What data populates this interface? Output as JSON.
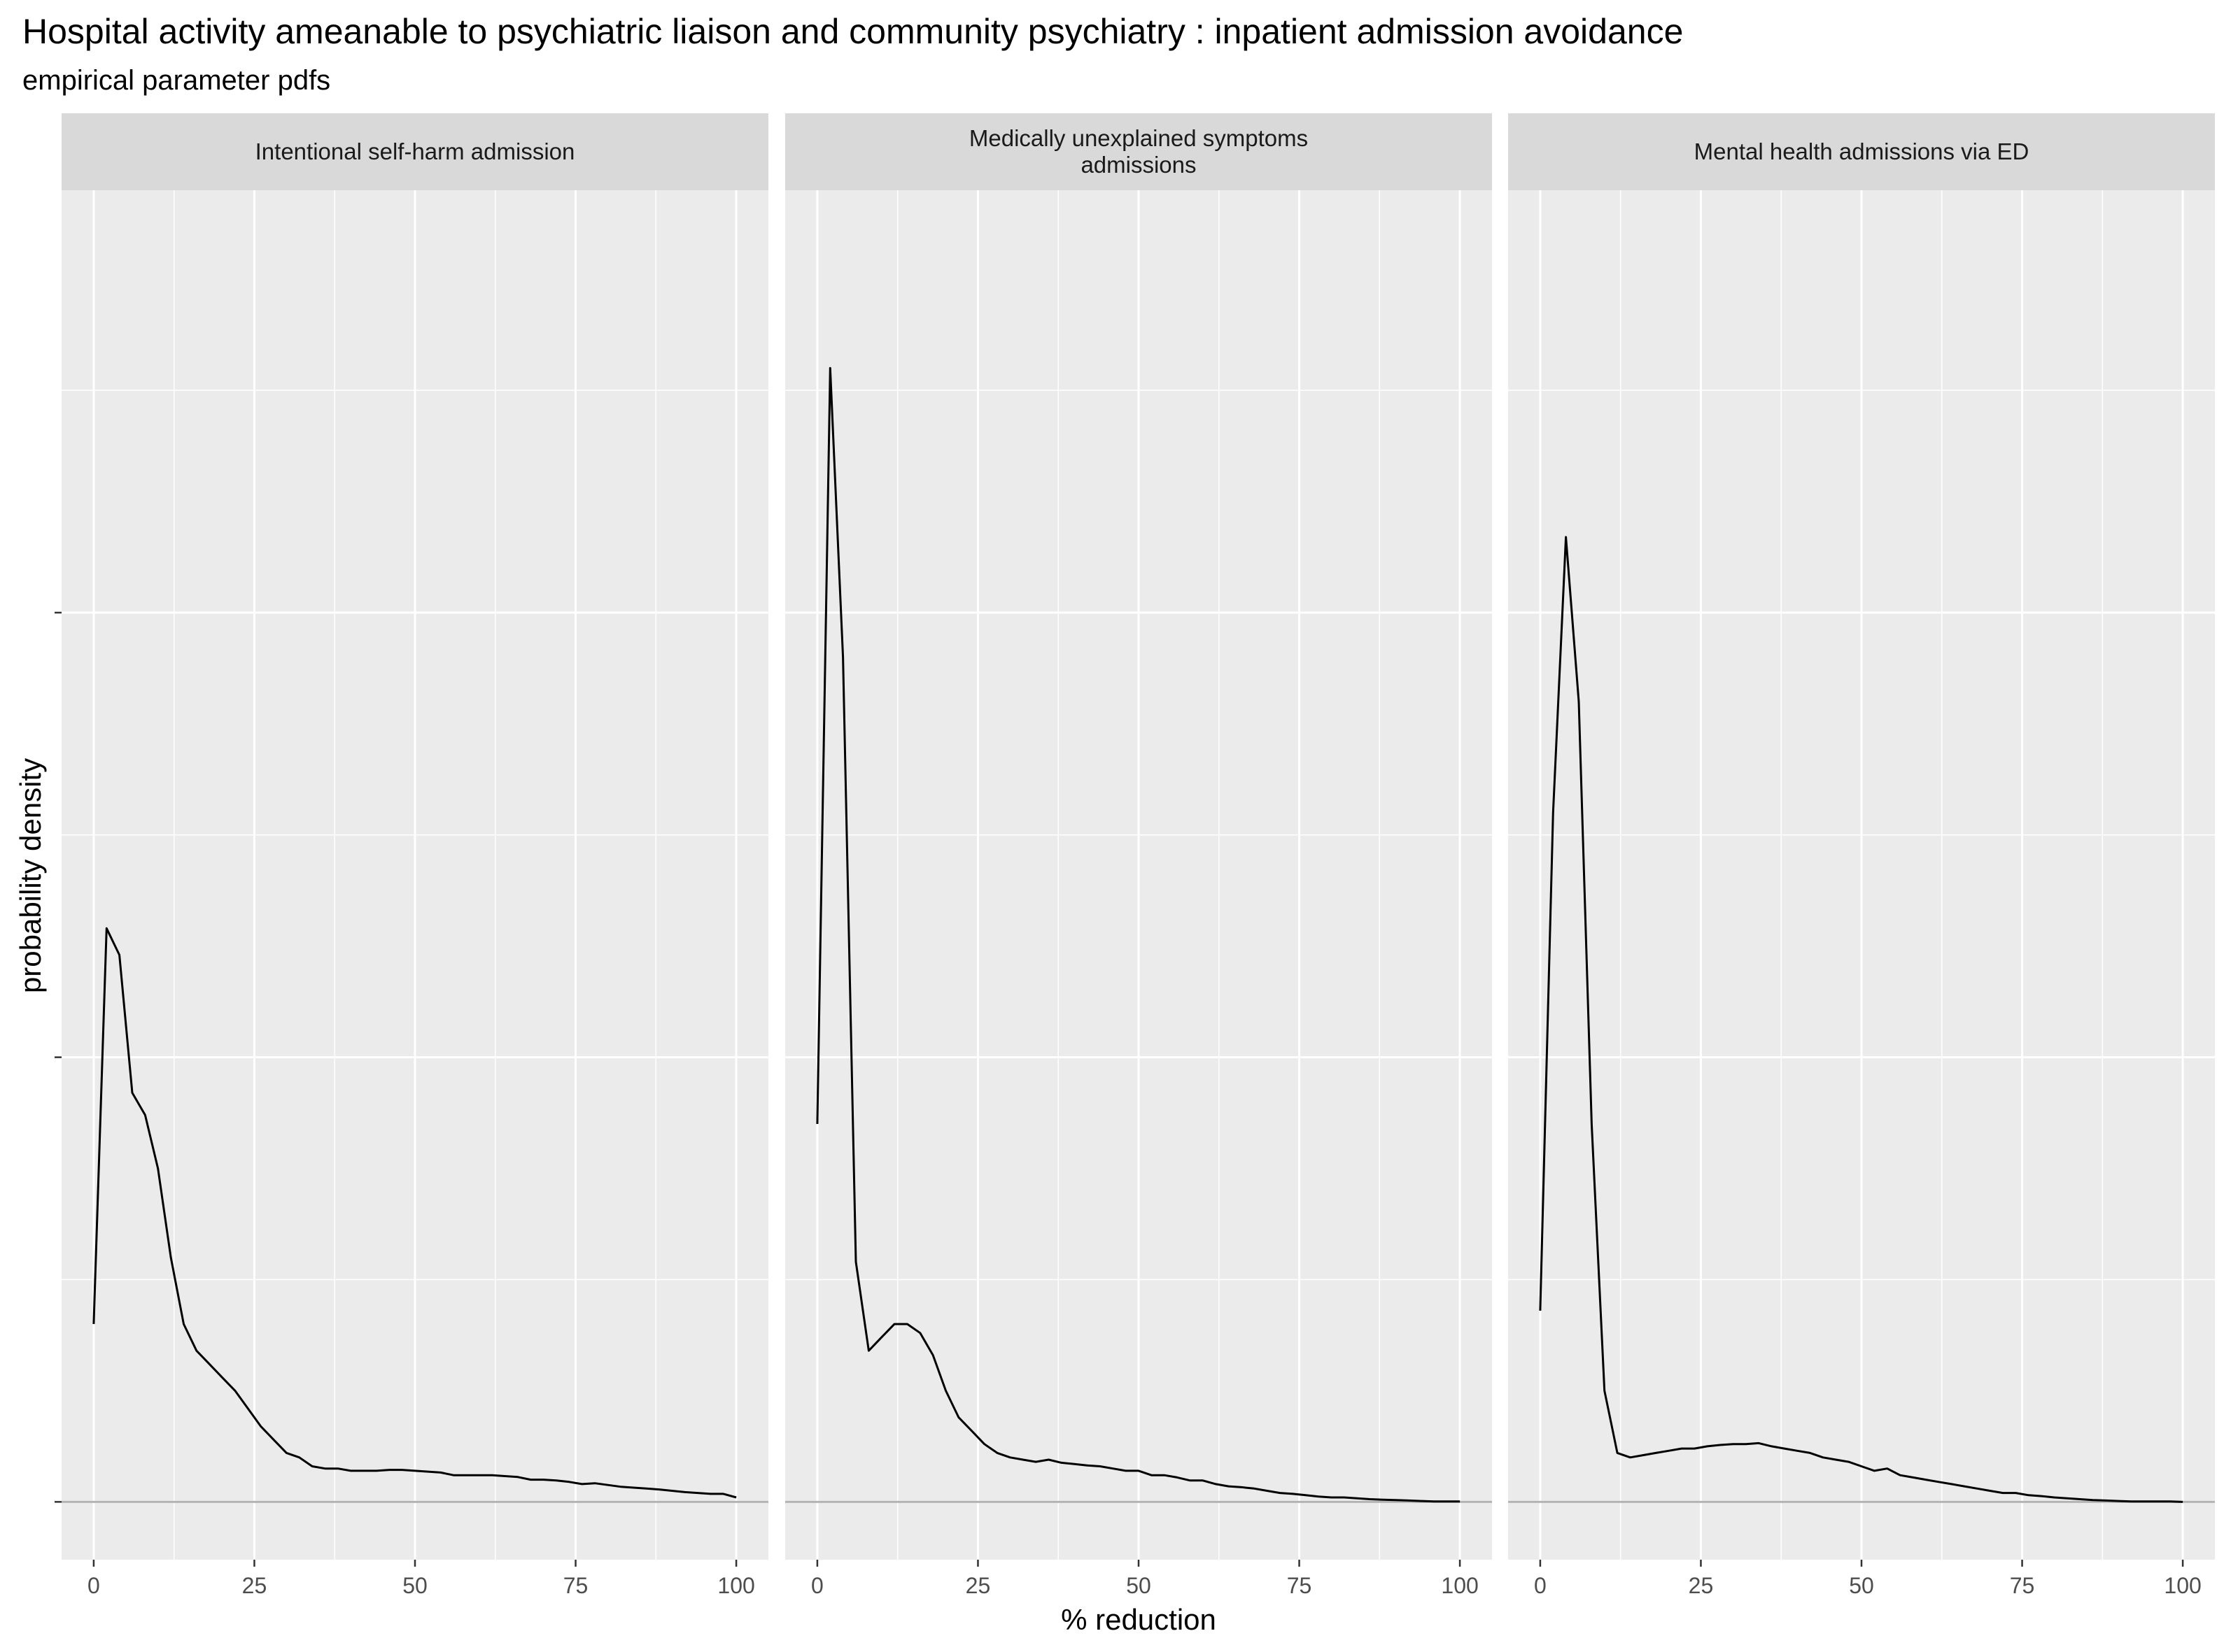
{
  "title": "Hospital activity ameanable to psychiatric liaison and community psychiatry : inpatient admission avoidance",
  "subtitle": "empirical parameter pdfs",
  "colors": {
    "panel_bg": "#EBEBEB",
    "strip_bg": "#D9D9D9",
    "grid": "#FFFFFF",
    "line": "#000000",
    "baseline": "#B3B3B3"
  },
  "chart_data": {
    "type": "line",
    "xlabel": "% reduction",
    "ylabel": "probability density",
    "xlim": [
      -5,
      105
    ],
    "ylim": [
      -0.0013,
      0.0295
    ],
    "x_ticks": [
      0,
      25,
      50,
      75,
      100
    ],
    "x_tick_labels": [
      "0",
      "25",
      "50",
      "75",
      "100"
    ],
    "y_ticks": [
      0,
      0.01,
      0.02
    ],
    "y_tick_labels": [
      "",
      "",
      ""
    ],
    "hline": 0,
    "grid": true,
    "panels": [
      {
        "name": "Intentional self-harm admission",
        "x": [
          0,
          2,
          4,
          6,
          8,
          10,
          12,
          14,
          16,
          18,
          20,
          22,
          24,
          26,
          28,
          30,
          32,
          34,
          36,
          38,
          40,
          42,
          44,
          46,
          48,
          50,
          52,
          54,
          56,
          58,
          60,
          62,
          64,
          66,
          68,
          70,
          72,
          74,
          76,
          78,
          80,
          82,
          84,
          86,
          88,
          90,
          92,
          94,
          96,
          98,
          100
        ],
        "y": [
          0.004,
          0.0129,
          0.0123,
          0.0092,
          0.0087,
          0.0075,
          0.0055,
          0.004,
          0.0034,
          0.0031,
          0.0028,
          0.0025,
          0.0021,
          0.0017,
          0.0014,
          0.0011,
          0.001,
          0.0008,
          0.00075,
          0.00075,
          0.0007,
          0.0007,
          0.0007,
          0.00072,
          0.00072,
          0.0007,
          0.00068,
          0.00066,
          0.0006,
          0.0006,
          0.0006,
          0.0006,
          0.00058,
          0.00056,
          0.0005,
          0.0005,
          0.00048,
          0.00045,
          0.0004,
          0.00042,
          0.00038,
          0.00034,
          0.00032,
          0.0003,
          0.00028,
          0.00025,
          0.00022,
          0.0002,
          0.00018,
          0.00018,
          0.0001
        ]
      },
      {
        "name": "Medically unexplained symptoms\nadmissions",
        "x": [
          0,
          2,
          4,
          6,
          8,
          10,
          12,
          14,
          16,
          18,
          20,
          22,
          24,
          26,
          28,
          30,
          32,
          34,
          36,
          38,
          40,
          42,
          44,
          46,
          48,
          50,
          52,
          54,
          56,
          58,
          60,
          62,
          64,
          66,
          68,
          70,
          72,
          74,
          76,
          78,
          80,
          82,
          84,
          86,
          88,
          90,
          92,
          94,
          96,
          98,
          100
        ],
        "y": [
          0.0085,
          0.0255,
          0.019,
          0.0054,
          0.0034,
          0.0037,
          0.004,
          0.004,
          0.0038,
          0.0033,
          0.0025,
          0.0019,
          0.0016,
          0.0013,
          0.0011,
          0.001,
          0.00095,
          0.0009,
          0.00095,
          0.00088,
          0.00085,
          0.00082,
          0.0008,
          0.00075,
          0.0007,
          0.0007,
          0.0006,
          0.0006,
          0.00055,
          0.00048,
          0.00048,
          0.0004,
          0.00035,
          0.00033,
          0.0003,
          0.00025,
          0.0002,
          0.00018,
          0.00015,
          0.00012,
          0.0001,
          0.0001,
          8e-05,
          6e-05,
          5e-05,
          4e-05,
          3e-05,
          2e-05,
          1e-05,
          1e-05,
          1e-05
        ]
      },
      {
        "name": "Mental health admissions via ED",
        "x": [
          0,
          2,
          4,
          6,
          8,
          10,
          12,
          14,
          16,
          18,
          20,
          22,
          24,
          26,
          28,
          30,
          32,
          34,
          36,
          38,
          40,
          42,
          44,
          46,
          48,
          50,
          52,
          54,
          56,
          58,
          60,
          62,
          64,
          66,
          68,
          70,
          72,
          74,
          76,
          78,
          80,
          82,
          84,
          86,
          88,
          90,
          92,
          94,
          96,
          98,
          100
        ],
        "y": [
          0.0043,
          0.0155,
          0.0217,
          0.018,
          0.0085,
          0.0025,
          0.0011,
          0.001,
          0.00105,
          0.0011,
          0.00115,
          0.0012,
          0.0012,
          0.00125,
          0.00128,
          0.0013,
          0.0013,
          0.00132,
          0.00125,
          0.0012,
          0.00115,
          0.0011,
          0.001,
          0.00095,
          0.0009,
          0.0008,
          0.0007,
          0.00075,
          0.0006,
          0.00055,
          0.0005,
          0.00045,
          0.0004,
          0.00035,
          0.0003,
          0.00025,
          0.0002,
          0.0002,
          0.00015,
          0.00013,
          0.0001,
          8e-05,
          6e-05,
          4e-05,
          3e-05,
          2e-05,
          1e-05,
          1e-05,
          1e-05,
          1e-05,
          0.0
        ]
      }
    ]
  }
}
